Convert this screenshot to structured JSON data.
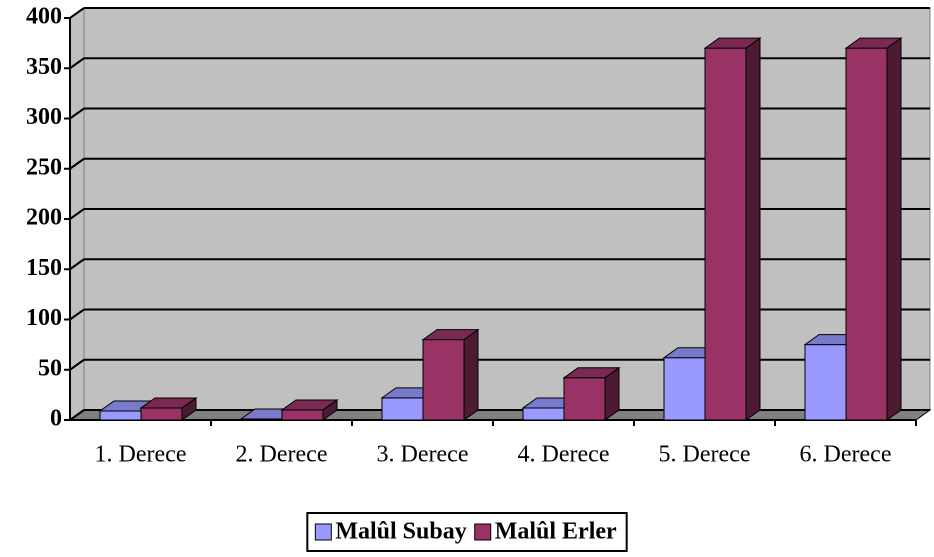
{
  "chart_data": {
    "type": "bar3d",
    "categories": [
      "1. Derece",
      "2. Derece",
      "3. Derece",
      "4. Derece",
      "5. Derece",
      "6. Derece"
    ],
    "series": [
      {
        "name": "Malûl Subay",
        "color": "#9999ff",
        "values": [
          9,
          1,
          22,
          12,
          62,
          75
        ]
      },
      {
        "name": "Malûl Erler",
        "color": "#993366",
        "values": [
          12,
          10,
          80,
          42,
          370,
          370
        ]
      }
    ],
    "ylim": [
      0,
      400
    ],
    "yticks": [
      0,
      50,
      100,
      150,
      200,
      250,
      300,
      350,
      400
    ],
    "grid": true,
    "legend": "bottom"
  }
}
